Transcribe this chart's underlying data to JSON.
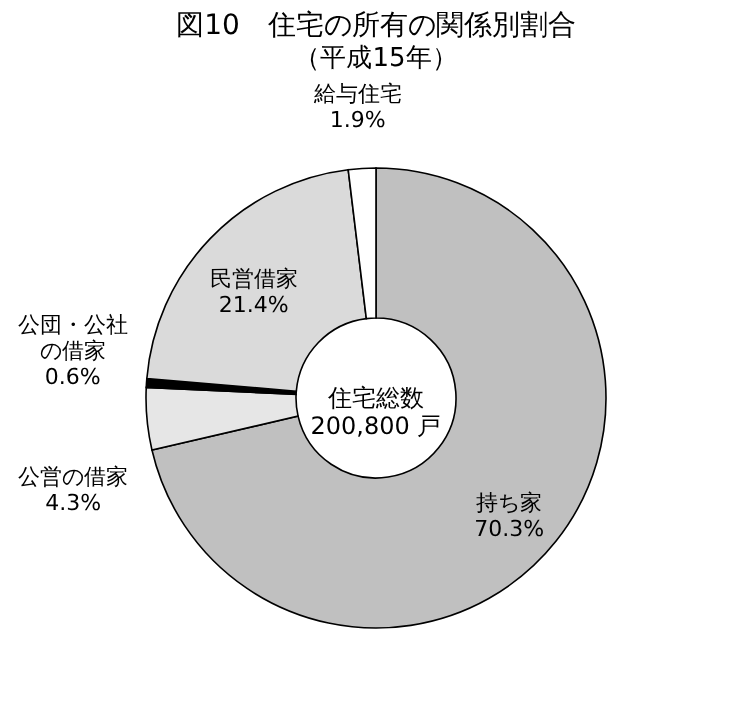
{
  "chart_data": {
    "type": "donut",
    "title": "図10　住宅の所有の関係別割合",
    "subtitle": "（平成15年）",
    "categories": [
      "持ち家",
      "公営の借家",
      "公団・公社の借家",
      "民営借家",
      "給与住宅"
    ],
    "values": [
      70.3,
      4.3,
      0.6,
      21.4,
      1.9
    ],
    "value_labels": [
      "70.3%",
      "4.3%",
      "0.6%",
      "21.4%",
      "1.9%"
    ],
    "colors": [
      "#c0c0c0",
      "#e6e6e6",
      "#000000",
      "#dadada",
      "#ffffff"
    ],
    "annotations": [
      "住宅総数\n200,800 戸"
    ],
    "legend": false
  }
}
